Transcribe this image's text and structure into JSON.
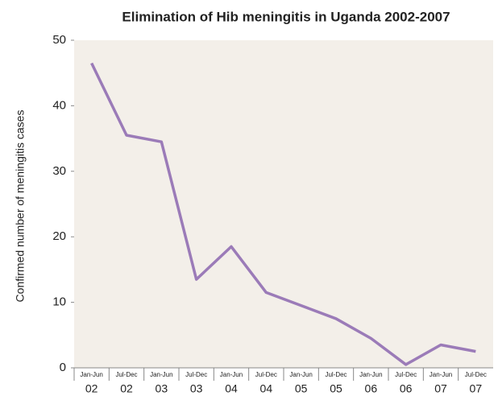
{
  "chart_data": {
    "type": "line",
    "title": "Elimination of Hib meningitis in Uganda 2002-2007",
    "y_label": "Confirmed number of meningitis cases",
    "categories": [
      "Jan-Jun",
      "Jul-Dec",
      "Jan-Jun",
      "Jul-Dec",
      "Jan-Jun",
      "Jul-Dec",
      "Jan-Jun",
      "Jul-Dec",
      "Jan-Jun",
      "Jul-Dec",
      "Jan-Jun",
      "Jul-Dec"
    ],
    "category_years": [
      "02",
      "02",
      "03",
      "03",
      "04",
      "04",
      "05",
      "05",
      "06",
      "06",
      "07",
      "07"
    ],
    "values": [
      46.5,
      35.5,
      34.5,
      13.5,
      18.5,
      11.5,
      9.5,
      7.5,
      4.5,
      0.5,
      3.5,
      2.5
    ],
    "color": "#9b7bb8",
    "ylim": [
      0,
      50
    ],
    "yticks": [
      0,
      10,
      20,
      30,
      40,
      50
    ]
  }
}
